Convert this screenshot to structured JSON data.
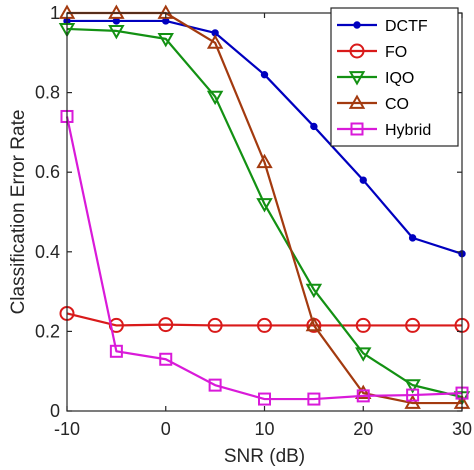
{
  "chart_data": {
    "type": "line",
    "title": "",
    "xlabel": "SNR (dB)",
    "ylabel": "Classification Error Rate",
    "xlim": [
      -10,
      30
    ],
    "ylim": [
      0,
      1
    ],
    "x": [
      -10,
      -5,
      0,
      5,
      10,
      15,
      20,
      25,
      30
    ],
    "x_ticks": [
      -10,
      0,
      10,
      20,
      30
    ],
    "x_tick_labels": [
      "-10",
      "0",
      "10",
      "20",
      "30"
    ],
    "y_ticks": [
      0,
      0.2,
      0.4,
      0.6,
      0.8,
      1
    ],
    "y_tick_labels": [
      "0",
      "0.2",
      "0.4",
      "0.6",
      "0.8",
      "1"
    ],
    "grid": false,
    "box": true,
    "legend_position": "top-right",
    "series": [
      {
        "name": "DCTF",
        "color": "#0000bf",
        "marker": "dot",
        "values": [
          0.98,
          0.98,
          0.98,
          0.95,
          0.845,
          0.715,
          0.58,
          0.435,
          0.395
        ]
      },
      {
        "name": "FO",
        "color": "#d91a1a",
        "marker": "circle",
        "values": [
          0.245,
          0.215,
          0.217,
          0.215,
          0.215,
          0.215,
          0.215,
          0.215,
          0.215
        ]
      },
      {
        "name": "IQO",
        "color": "#139113",
        "marker": "triangle-down",
        "values": [
          0.96,
          0.955,
          0.935,
          0.79,
          0.52,
          0.305,
          0.145,
          0.065,
          0.035
        ]
      },
      {
        "name": "CO",
        "color": "#a33a0f",
        "marker": "triangle-up",
        "values": [
          1.0,
          1.0,
          1.0,
          0.925,
          0.625,
          0.215,
          0.045,
          0.02,
          0.02
        ]
      },
      {
        "name": "Hybrid",
        "color": "#d91ad9",
        "marker": "square",
        "values": [
          0.74,
          0.15,
          0.13,
          0.065,
          0.03,
          0.03,
          0.038,
          0.04,
          0.045
        ]
      }
    ]
  }
}
